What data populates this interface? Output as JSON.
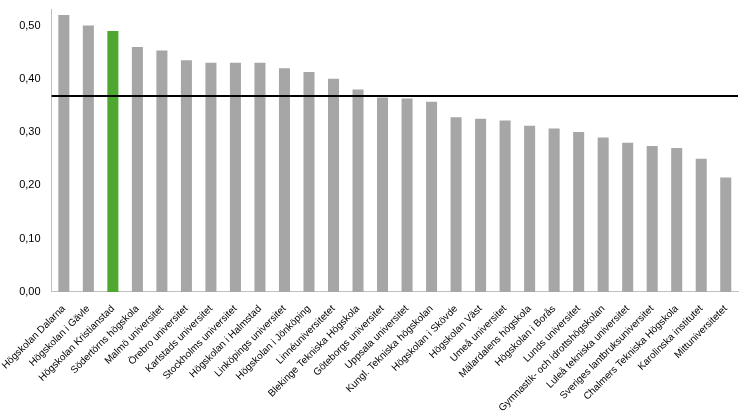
{
  "chart_data": {
    "type": "bar",
    "categories": [
      "Högskolan Dalarna",
      "Högskolan i Gävle",
      "Högskolan Kristianstad",
      "Södertörns högskola",
      "Malmö universitet",
      "Örebro universitet",
      "Karlstads universitet",
      "Stockholms universitet",
      "Högskolan i Halmstad",
      "Linköpings universitet",
      "Högskolan i Jönköping",
      "Linnéuniversitetet",
      "Blekinge Tekniska Högskola",
      "Göteborgs universitet",
      "Uppsala universitet",
      "Kungl. Tekniska högskolan",
      "Högskolan i Skövde",
      "Högskolan Väst",
      "Umeå universitet",
      "Mälardalens högskola",
      "Högskolan i Borås",
      "Lunds universitet",
      "Gymnastik- och idrottshögskolan",
      "Luleå tekniska universitet",
      "Sveriges lantbruksuniversitet",
      "Chalmers Tekniska Högskola",
      "Karolinska institutet",
      "Mittuniversitetet"
    ],
    "values": [
      0.52,
      0.5,
      0.49,
      0.46,
      0.453,
      0.435,
      0.43,
      0.43,
      0.43,
      0.42,
      0.413,
      0.4,
      0.38,
      0.365,
      0.363,
      0.357,
      0.328,
      0.325,
      0.322,
      0.312,
      0.307,
      0.3,
      0.29,
      0.28,
      0.274,
      0.27,
      0.25,
      0.215
    ],
    "colors": [
      "#a6a6a6",
      "#a6a6a6",
      "#4ea72e",
      "#a6a6a6",
      "#a6a6a6",
      "#a6a6a6",
      "#a6a6a6",
      "#a6a6a6",
      "#a6a6a6",
      "#a6a6a6",
      "#a6a6a6",
      "#a6a6a6",
      "#a6a6a6",
      "#a6a6a6",
      "#a6a6a6",
      "#a6a6a6",
      "#a6a6a6",
      "#a6a6a6",
      "#a6a6a6",
      "#a6a6a6",
      "#a6a6a6",
      "#a6a6a6",
      "#a6a6a6",
      "#a6a6a6",
      "#a6a6a6",
      "#a6a6a6",
      "#a6a6a6",
      "#a6a6a6"
    ],
    "reference_line": 0.368,
    "ylim": [
      0,
      0.53
    ],
    "yticks": [
      {
        "value": 0,
        "label": "0,00"
      },
      {
        "value": 0.1,
        "label": "0,10"
      },
      {
        "value": 0.2,
        "label": "0,20"
      },
      {
        "value": 0.3,
        "label": "0,30"
      },
      {
        "value": 0.4,
        "label": "0,40"
      },
      {
        "value": 0.5,
        "label": "0,50"
      }
    ],
    "grid": false
  }
}
